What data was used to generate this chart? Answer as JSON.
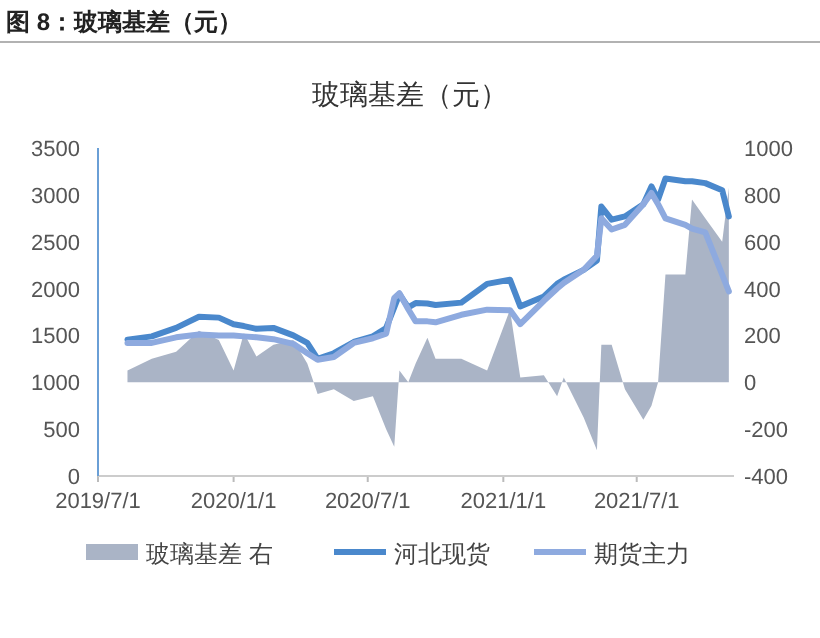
{
  "chart_data": {
    "type": "line",
    "title": "玻璃基差（元）",
    "annotations": [
      "图 8：玻璃基差（元）"
    ],
    "x": [
      "2019-08-10",
      "2019-09-12",
      "2019-10-15",
      "2019-11-15",
      "2019-12-12",
      "2020-01-01",
      "2020-01-15",
      "2020-02-01",
      "2020-02-24",
      "2020-03-22",
      "2020-04-10",
      "2020-04-24",
      "2020-05-16",
      "2020-06-12",
      "2020-07-08",
      "2020-07-26",
      "2020-08-06",
      "2020-08-13",
      "2020-08-25",
      "2020-09-04",
      "2020-09-20",
      "2020-10-01",
      "2020-11-05",
      "2020-12-10",
      "2021-01-10",
      "2021-01-24",
      "2021-02-25",
      "2021-03-15",
      "2021-03-24",
      "2021-04-20",
      "2021-05-08",
      "2021-05-14",
      "2021-05-28",
      "2021-06-15",
      "2021-07-10",
      "2021-07-21",
      "2021-07-30",
      "2021-08-09",
      "2021-09-05",
      "2021-09-14",
      "2021-10-02",
      "2021-10-25",
      "2021-11-03"
    ],
    "series": [
      {
        "name": "玻璃基差 右",
        "type": "area",
        "axis": "y2",
        "color": "#aab4c6",
        "values": [
          50,
          100,
          130,
          220,
          180,
          50,
          210,
          110,
          160,
          180,
          80,
          -50,
          -30,
          -80,
          -60,
          -200,
          -275,
          50,
          0,
          80,
          190,
          100,
          100,
          50,
          310,
          20,
          30,
          -60,
          20,
          -150,
          -290,
          160,
          160,
          -30,
          -160,
          -100,
          0,
          460,
          460,
          780,
          700,
          600,
          830
        ]
      },
      {
        "name": "河北现货",
        "color": "#4a88cc",
        "values": [
          1455,
          1490,
          1580,
          1700,
          1690,
          1620,
          1600,
          1570,
          1580,
          1500,
          1420,
          1250,
          1310,
          1430,
          1490,
          1580,
          1800,
          1940,
          1800,
          1845,
          1840,
          1825,
          1850,
          2050,
          2095,
          1810,
          1915,
          2050,
          2095,
          2200,
          2300,
          2875,
          2735,
          2770,
          2900,
          3090,
          2950,
          3175,
          3145,
          3145,
          3125,
          3050,
          2770
        ]
      },
      {
        "name": "期货主力",
        "color": "#8eaadf",
        "values": [
          1420,
          1420,
          1480,
          1510,
          1500,
          1500,
          1490,
          1480,
          1460,
          1410,
          1310,
          1240,
          1270,
          1420,
          1470,
          1520,
          1900,
          1950,
          1780,
          1650,
          1650,
          1640,
          1720,
          1775,
          1770,
          1620,
          1870,
          2000,
          2060,
          2200,
          2350,
          2750,
          2630,
          2680,
          2900,
          3020,
          2900,
          2750,
          2680,
          2640,
          2600,
          2150,
          1970
        ]
      }
    ],
    "xlim": [
      "2019-07-01",
      "2021-11-10"
    ],
    "xticks": [
      {
        "value": "2019-07-01",
        "label": "2019/7/1"
      },
      {
        "value": "2020-01-01",
        "label": "2020/1/1"
      },
      {
        "value": "2020-07-01",
        "label": "2020/7/1"
      },
      {
        "value": "2021-01-01",
        "label": "2021/1/1"
      },
      {
        "value": "2021-07-01",
        "label": "2021/7/1"
      }
    ],
    "ylim": [
      0,
      3500
    ],
    "yticks": [
      0,
      500,
      1000,
      1500,
      2000,
      2500,
      3000,
      3500
    ],
    "y2lim": [
      -400,
      1000
    ],
    "y2ticks": [
      -400,
      -200,
      0,
      200,
      400,
      600,
      800,
      1000
    ],
    "legend": "bottom"
  }
}
